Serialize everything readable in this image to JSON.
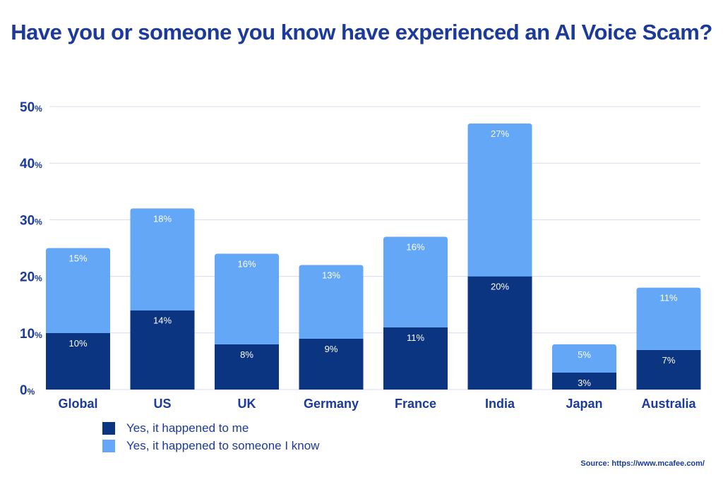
{
  "chart_data": {
    "type": "bar",
    "stacked": true,
    "title": "Have you or someone you know have experienced an AI Voice Scam?",
    "categories": [
      "Global",
      "US",
      "UK",
      "Germany",
      "France",
      "India",
      "Japan",
      "Australia"
    ],
    "series": [
      {
        "name": "Yes, it happened to me",
        "values": [
          10,
          14,
          8,
          9,
          11,
          20,
          3,
          7
        ],
        "color": "#0b3580"
      },
      {
        "name": "Yes, it happened to someone I know",
        "values": [
          15,
          18,
          16,
          13,
          16,
          27,
          5,
          11
        ],
        "color": "#64a7f7"
      }
    ],
    "ylim": [
      0,
      50
    ],
    "yticks": [
      0,
      10,
      20,
      30,
      40,
      50
    ],
    "ytick_suffix": "%",
    "value_suffix": "%",
    "grid": true,
    "legend_position": "bottom-left",
    "source": "Source: https://www.mcafee.com/"
  },
  "colors": {
    "title": "#1b3a9a",
    "grid": "#d5dcf0"
  }
}
